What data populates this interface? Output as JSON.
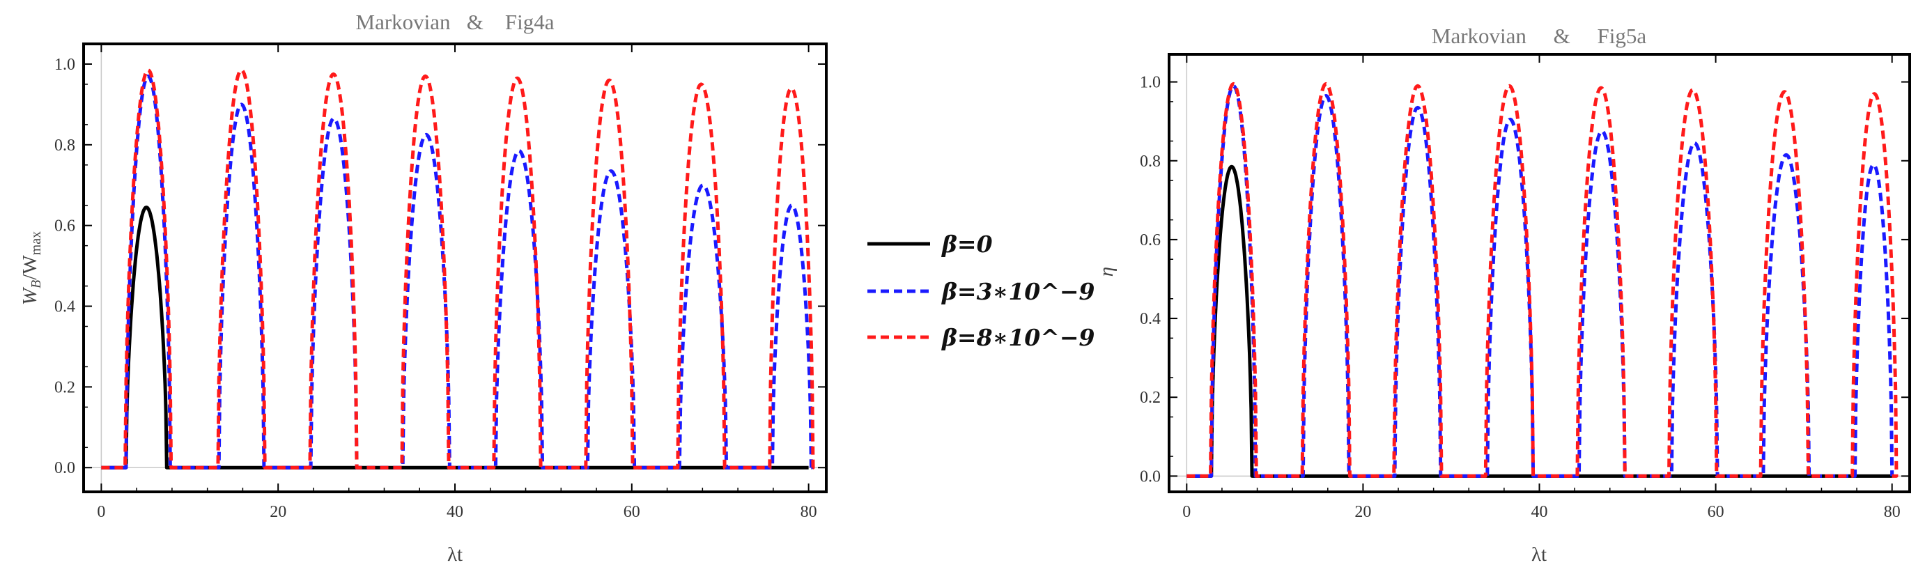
{
  "legend": [
    {
      "name": "β=0",
      "color": "#000000",
      "dash": false
    },
    {
      "name": "β=3∗10^−9",
      "color": "#1a1aff",
      "dash": true
    },
    {
      "name": "β=8∗10^−9",
      "color": "#ff1a1a",
      "dash": true
    }
  ],
  "chart_data": [
    {
      "type": "line",
      "title": "Markovian   &    Fig4a",
      "xlabel": "λt",
      "ylabel_main": "W",
      "ylabel_sub1": "B",
      "ylabel_mid": "/W",
      "ylabel_sub2": "max",
      "xlim": [
        -2,
        82
      ],
      "ylim": [
        -0.06,
        1.05
      ],
      "xticks": [
        0,
        20,
        40,
        60,
        80
      ],
      "yticks": [
        0.0,
        0.2,
        0.4,
        0.6,
        0.8,
        1.0
      ],
      "ytick_labels": [
        "0.0",
        "0.2",
        "0.4",
        "0.6",
        "0.8",
        "1.0"
      ],
      "series": [
        {
          "name": "β=0",
          "color": "#000000",
          "dash": false,
          "arcs": [
            [
              2.8,
              7.4,
              0.645
            ]
          ]
        },
        {
          "name": "β=3∗10^−9",
          "color": "#1a1aff",
          "dash": true,
          "arcs": [
            [
              2.8,
              7.8,
              0.97
            ],
            [
              13.3,
              18.4,
              0.9
            ],
            [
              23.7,
              28.9,
              0.865
            ],
            [
              34.1,
              39.4,
              0.825
            ],
            [
              44.6,
              49.9,
              0.785
            ],
            [
              55.0,
              60.3,
              0.735
            ],
            [
              65.4,
              70.7,
              0.7
            ],
            [
              75.9,
              80.3,
              0.65
            ]
          ]
        },
        {
          "name": "β=8∗10^−9",
          "color": "#ff1a1a",
          "dash": true,
          "arcs": [
            [
              2.7,
              7.9,
              0.985
            ],
            [
              13.2,
              18.5,
              0.985
            ],
            [
              23.6,
              28.9,
              0.975
            ],
            [
              34.0,
              39.3,
              0.97
            ],
            [
              44.4,
              49.7,
              0.965
            ],
            [
              54.8,
              60.1,
              0.96
            ],
            [
              65.2,
              70.5,
              0.95
            ],
            [
              75.6,
              80.5,
              0.94
            ]
          ]
        }
      ],
      "frame": [
        120,
        63,
        1186,
        706
      ],
      "xlabel_y": 805
    },
    {
      "type": "line",
      "title": "Markovian     &     Fig5a",
      "xlabel": "λt",
      "ylabel_main": "η",
      "xlim": [
        -2,
        82
      ],
      "ylim": [
        -0.04,
        1.07
      ],
      "xticks": [
        0,
        20,
        40,
        60,
        80
      ],
      "yticks": [
        0.0,
        0.2,
        0.4,
        0.6,
        0.8,
        1.0
      ],
      "ytick_labels": [
        "0.0",
        "0.2",
        "0.4",
        "0.6",
        "0.8",
        "1.0"
      ],
      "series": [
        {
          "name": "β=0",
          "color": "#000000",
          "dash": false,
          "arcs": [
            [
              2.8,
              7.4,
              0.785
            ]
          ]
        },
        {
          "name": "β=3∗10^−9",
          "color": "#1a1aff",
          "dash": true,
          "arcs": [
            [
              2.8,
              7.8,
              0.99
            ],
            [
              13.2,
              18.4,
              0.965
            ],
            [
              23.6,
              28.8,
              0.935
            ],
            [
              34.1,
              39.3,
              0.905
            ],
            [
              44.5,
              49.7,
              0.875
            ],
            [
              55.0,
              60.2,
              0.845
            ],
            [
              65.4,
              70.6,
              0.815
            ],
            [
              75.8,
              80.0,
              0.79
            ]
          ]
        },
        {
          "name": "β=8∗10^−9",
          "color": "#ff1a1a",
          "dash": true,
          "arcs": [
            [
              2.7,
              7.9,
              0.995
            ],
            [
              13.1,
              18.5,
              0.995
            ],
            [
              23.5,
              28.9,
              0.99
            ],
            [
              33.9,
              39.3,
              0.99
            ],
            [
              44.3,
              49.7,
              0.985
            ],
            [
              54.7,
              60.1,
              0.98
            ],
            [
              65.1,
              70.5,
              0.975
            ],
            [
              75.5,
              80.5,
              0.97
            ]
          ]
        }
      ],
      "frame": [
        1678,
        78,
        2741,
        706
      ],
      "xlabel_y": 805
    }
  ]
}
